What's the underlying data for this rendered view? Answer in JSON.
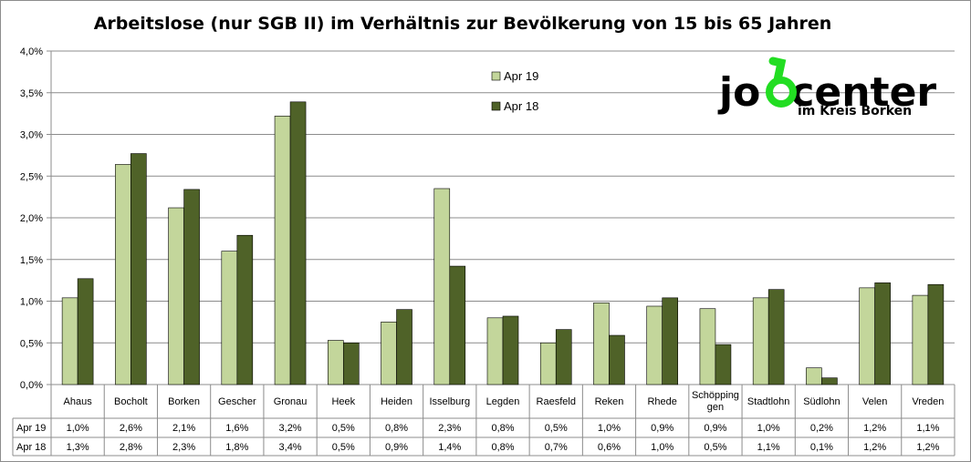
{
  "chart_data": {
    "type": "bar",
    "title": "Arbeitslose (nur SGB II) im Verhältnis zur Bevölkerung von 15 bis 65 Jahren",
    "xlabel": "",
    "ylabel": "",
    "ylim": [
      0,
      4
    ],
    "y_ticks": [
      "0,0%",
      "0,5%",
      "1,0%",
      "1,5%",
      "2,0%",
      "2,5%",
      "3,0%",
      "3,5%",
      "4,0%"
    ],
    "grid": true,
    "legend_position": "top-center",
    "categories": [
      "Ahaus",
      "Bocholt",
      "Borken",
      "Gescher",
      "Gronau",
      "Heek",
      "Heiden",
      "Isselburg",
      "Legden",
      "Raesfeld",
      "Reken",
      "Rhede",
      "Schöpping gen",
      "Stadtlohn",
      "Südlohn",
      "Velen",
      "Vreden"
    ],
    "series": [
      {
        "name": "Apr 19",
        "color": "#c3d69b",
        "values": [
          1.04,
          2.64,
          2.12,
          1.6,
          3.22,
          0.53,
          0.75,
          2.35,
          0.8,
          0.5,
          0.98,
          0.94,
          0.91,
          1.04,
          0.2,
          1.16,
          1.07
        ],
        "labels": [
          "1,0%",
          "2,6%",
          "2,1%",
          "1,6%",
          "3,2%",
          "0,5%",
          "0,8%",
          "2,3%",
          "0,8%",
          "0,5%",
          "1,0%",
          "0,9%",
          "0,9%",
          "1,0%",
          "0,2%",
          "1,2%",
          "1,1%"
        ]
      },
      {
        "name": "Apr 18",
        "color": "#4f6228",
        "values": [
          1.27,
          2.77,
          2.34,
          1.79,
          3.39,
          0.5,
          0.9,
          1.42,
          0.82,
          0.66,
          0.59,
          1.04,
          0.48,
          1.14,
          0.08,
          1.22,
          1.2
        ],
        "labels": [
          "1,3%",
          "2,8%",
          "2,3%",
          "1,8%",
          "3,4%",
          "0,5%",
          "0,9%",
          "1,4%",
          "0,8%",
          "0,7%",
          "0,6%",
          "1,0%",
          "0,5%",
          "1,1%",
          "0,1%",
          "1,2%",
          "1,2%"
        ]
      }
    ]
  },
  "logo": {
    "text_before": "jo",
    "text_after": "center",
    "subtitle": "im Kreis Borken",
    "green": "#22dd22"
  }
}
